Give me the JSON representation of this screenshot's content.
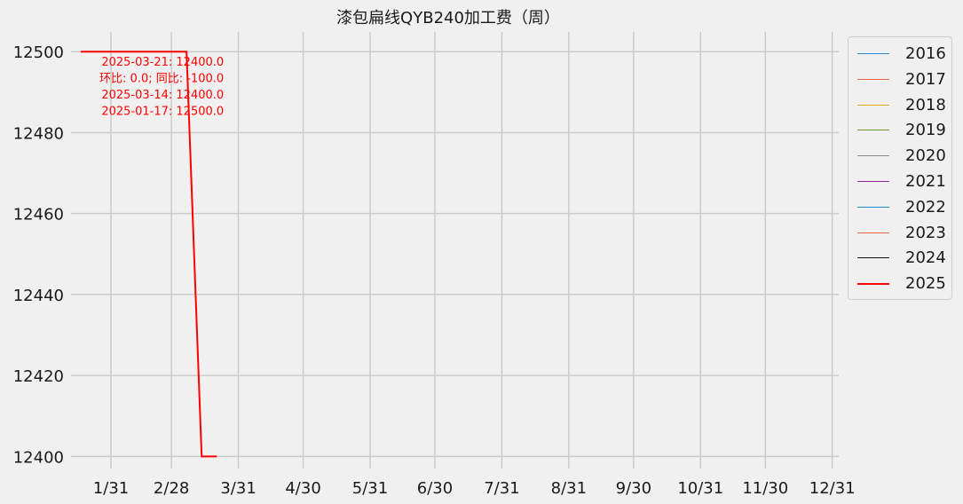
{
  "chart_data": {
    "type": "line",
    "title": "漆包扁线QYB240加工费（周）",
    "xlabel": "",
    "ylabel": "",
    "x_ticks": [
      "1/31",
      "2/28",
      "3/31",
      "4/30",
      "5/31",
      "6/30",
      "7/31",
      "8/31",
      "9/30",
      "10/31",
      "11/30",
      "12/31"
    ],
    "x_range": [
      "01-17",
      "12/31"
    ],
    "y_ticks": [
      12400,
      12420,
      12440,
      12460,
      12480,
      12500
    ],
    "ylim": [
      12397,
      12504
    ],
    "grid": true,
    "legend_position": "right-top",
    "series": [
      {
        "name": "2016",
        "color": "#1f8ad6",
        "points": []
      },
      {
        "name": "2017",
        "color": "#f06040",
        "points": []
      },
      {
        "name": "2018",
        "color": "#e5a81a",
        "points": []
      },
      {
        "name": "2019",
        "color": "#6b9a3a",
        "points": []
      },
      {
        "name": "2020",
        "color": "#8a8a8a",
        "points": []
      },
      {
        "name": "2021",
        "color": "#9a1f9a",
        "points": []
      },
      {
        "name": "2022",
        "color": "#1f8ad6",
        "points": []
      },
      {
        "name": "2023",
        "color": "#f06040",
        "points": []
      },
      {
        "name": "2024",
        "color": "#111111",
        "points": []
      },
      {
        "name": "2025",
        "color": "#ff0000",
        "points": [
          {
            "x": "01-17",
            "y": 12500
          },
          {
            "x": "03-07",
            "y": 12500
          },
          {
            "x": "03-14",
            "y": 12400
          },
          {
            "x": "03-21",
            "y": 12400
          }
        ]
      }
    ],
    "annotations": [
      "2025-03-21: 12400.0",
      "环比: 0.0; 同比: -100.0",
      "2025-03-14: 12400.0",
      "2025-01-17: 12500.0"
    ]
  }
}
